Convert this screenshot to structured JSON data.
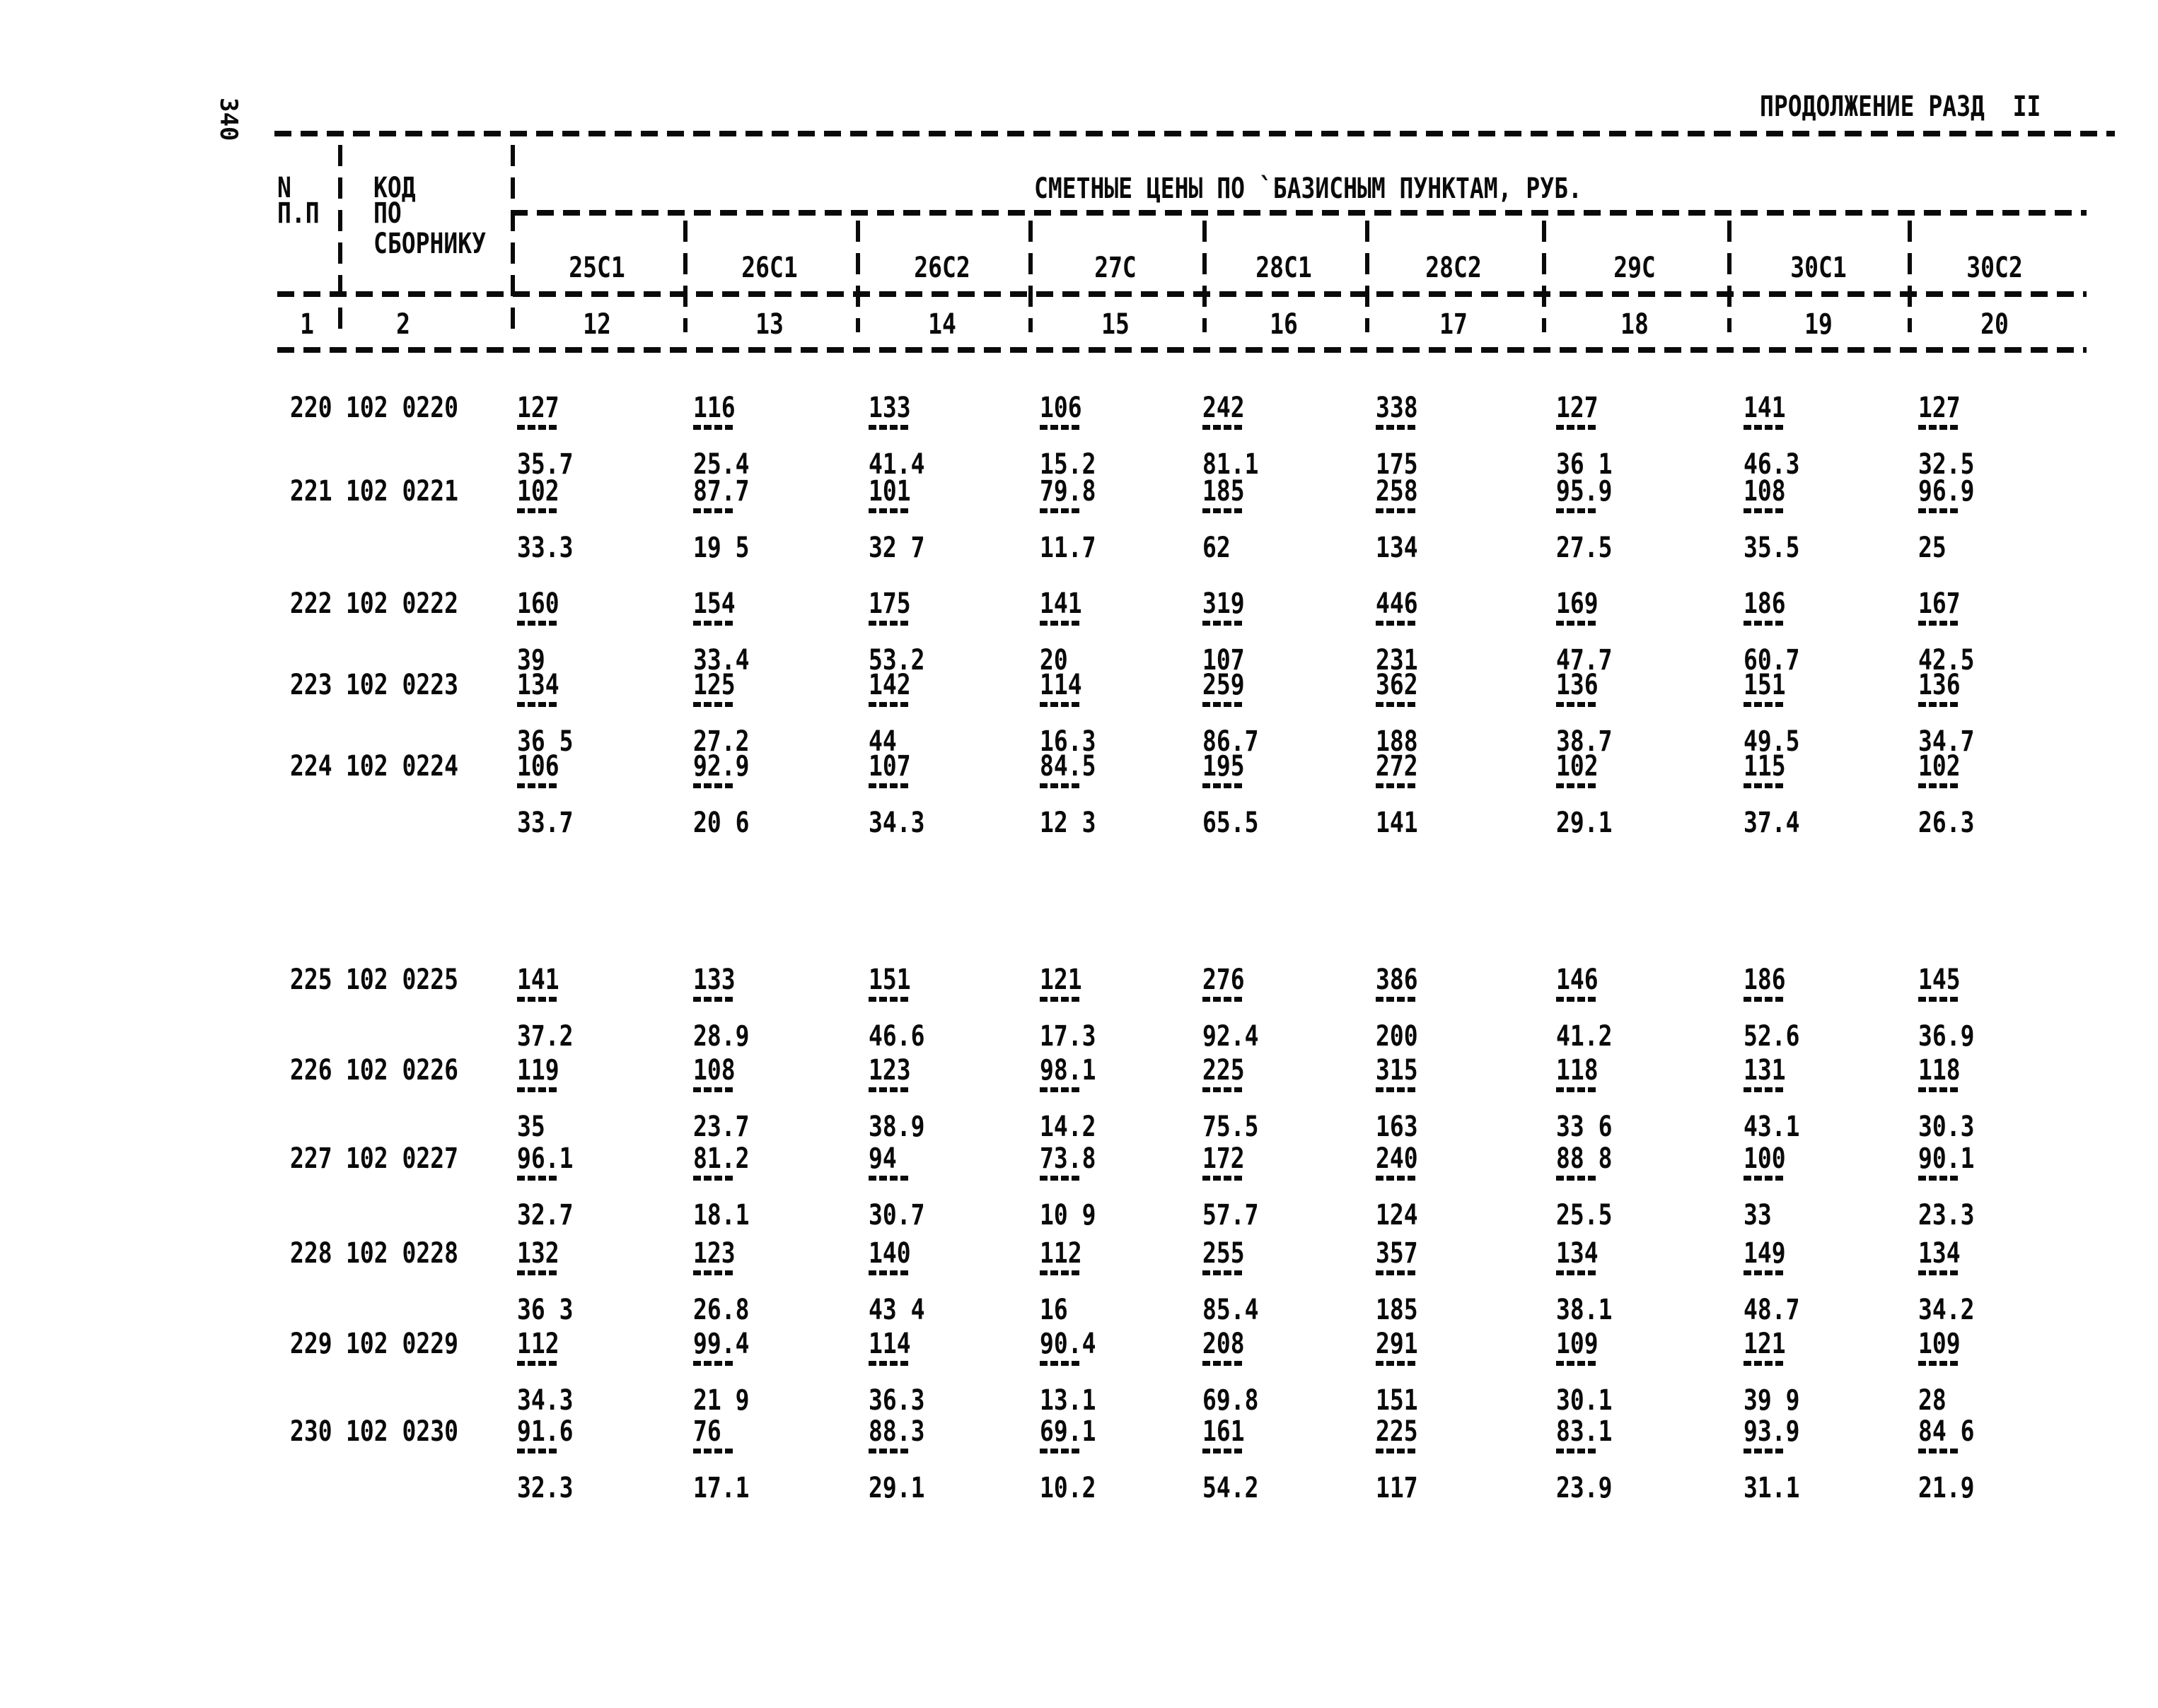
{
  "page": {
    "rotated_page_number": "340",
    "continuation_header": "ПРОДОЛЖЕНИЕ РАЗД  II"
  },
  "table": {
    "span_header": "СМЕТНЫЕ ЦЕНЫ ПО `БАЗИСНЫМ ПУНКТАМ, РУБ.",
    "row_col_header": [
      "N",
      "П.П"
    ],
    "code_col_header": [
      "КОД",
      "ПО",
      "СБОРНИКУ"
    ],
    "row_col_number": "1",
    "code_col_number": "2",
    "price_columns": [
      {
        "label": "25С1",
        "number": "12"
      },
      {
        "label": "26С1",
        "number": "13"
      },
      {
        "label": "26С2",
        "number": "14"
      },
      {
        "label": "27С",
        "number": "15"
      },
      {
        "label": "28С1",
        "number": "16"
      },
      {
        "label": "28С2",
        "number": "17"
      },
      {
        "label": "29С",
        "number": "18"
      },
      {
        "label": "30С1",
        "number": "19"
      },
      {
        "label": "30С2",
        "number": "20"
      }
    ],
    "rows": [
      {
        "n": "220",
        "code": "102 0220",
        "upper": [
          "127",
          "116",
          "133",
          "106",
          "242",
          "338",
          "127",
          "141",
          "127"
        ],
        "lower": [
          "35.7",
          "25.4",
          "41.4",
          "15.2",
          "81.1",
          "175",
          "36 1",
          "46.3",
          "32.5"
        ]
      },
      {
        "n": "221",
        "code": "102 0221",
        "upper": [
          "102",
          "87.7",
          "101",
          "79.8",
          "185",
          "258",
          "95.9",
          "108",
          "96.9"
        ],
        "lower": [
          "33.3",
          "19 5",
          "32 7",
          "11.7",
          "62",
          "134",
          "27.5",
          "35.5",
          "25"
        ]
      },
      {
        "n": "222",
        "code": "102 0222",
        "upper": [
          "160",
          "154",
          "175",
          "141",
          "319",
          "446",
          "169",
          "186",
          "167"
        ],
        "lower": [
          "39",
          "33.4",
          "53.2",
          "20",
          "107",
          "231",
          "47.7",
          "60.7",
          "42.5"
        ]
      },
      {
        "n": "223",
        "code": "102 0223",
        "upper": [
          "134",
          "125",
          "142",
          "114",
          "259",
          "362",
          "136",
          "151",
          "136"
        ],
        "lower": [
          "36 5",
          "27.2",
          "44",
          "16.3",
          "86.7",
          "188",
          "38.7",
          "49.5",
          "34.7"
        ]
      },
      {
        "n": "224",
        "code": "102 0224",
        "upper": [
          "106",
          "92.9",
          "107",
          "84.5",
          "195",
          "272",
          "102",
          "115",
          "102"
        ],
        "lower": [
          "33.7",
          "20 6",
          "34.3",
          "12 3",
          "65.5",
          "141",
          "29.1",
          "37.4",
          "26.3"
        ]
      },
      {
        "n": "225",
        "code": "102 0225",
        "upper": [
          "141",
          "133",
          "151",
          "121",
          "276",
          "386",
          "146",
          "186",
          "145"
        ],
        "lower": [
          "37.2",
          "28.9",
          "46.6",
          "17.3",
          "92.4",
          "200",
          "41.2",
          "52.6",
          "36.9"
        ]
      },
      {
        "n": "226",
        "code": "102 0226",
        "upper": [
          "119",
          "108",
          "123",
          "98.1",
          "225",
          "315",
          "118",
          "131",
          "118"
        ],
        "lower": [
          "35",
          "23.7",
          "38.9",
          "14.2",
          "75.5",
          "163",
          "33 6",
          "43.1",
          "30.3"
        ]
      },
      {
        "n": "227",
        "code": "102 0227",
        "upper": [
          "96.1",
          "81.2",
          "94",
          "73.8",
          "172",
          "240",
          "88 8",
          "100",
          "90.1"
        ],
        "lower": [
          "32.7",
          "18.1",
          "30.7",
          "10 9",
          "57.7",
          "124",
          "25.5",
          "33",
          "23.3"
        ]
      },
      {
        "n": "228",
        "code": "102 0228",
        "upper": [
          "132",
          "123",
          "140",
          "112",
          "255",
          "357",
          "134",
          "149",
          "134"
        ],
        "lower": [
          "36 3",
          "26.8",
          "43 4",
          "16",
          "85.4",
          "185",
          "38.1",
          "48.7",
          "34.2"
        ]
      },
      {
        "n": "229",
        "code": "102 0229",
        "upper": [
          "112",
          "99.4",
          "114",
          "90.4",
          "208",
          "291",
          "109",
          "121",
          "109"
        ],
        "lower": [
          "34.3",
          "21 9",
          "36.3",
          "13.1",
          "69.8",
          "151",
          "30.1",
          "39 9",
          "28"
        ]
      },
      {
        "n": "230",
        "code": "102 0230",
        "upper": [
          "91.6",
          "76",
          "88.3",
          "69.1",
          "161",
          "225",
          "83.1",
          "93.9",
          "84 6"
        ],
        "lower": [
          "32.3",
          "17.1",
          "29.1",
          "10.2",
          "54.2",
          "117",
          "23.9",
          "31.1",
          "21.9"
        ]
      }
    ]
  }
}
